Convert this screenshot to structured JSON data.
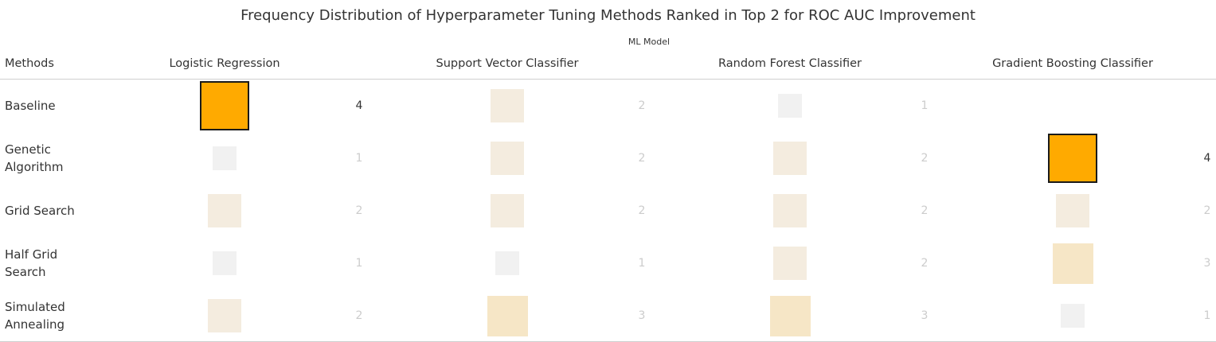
{
  "chart_data": {
    "type": "heatmap",
    "title": "Frequency Distribution of Hyperparameter Tuning Methods Ranked in Top 2 for ROC AUC Improvement",
    "column_group_label": "ML Model",
    "row_field_label": "Methods",
    "columns": [
      "Logistic Regression",
      "Support Vector Classifier",
      "Random Forest Classifier",
      "Gradient Boosting Classifier"
    ],
    "rows": [
      "Baseline",
      "Genetic\nAlgorithm",
      "Grid Search",
      "Half Grid\nSearch",
      "Simulated\nAnnealing"
    ],
    "values": [
      [
        4,
        2,
        1,
        null
      ],
      [
        1,
        2,
        2,
        4
      ],
      [
        2,
        2,
        2,
        2
      ],
      [
        1,
        1,
        2,
        3
      ],
      [
        2,
        3,
        3,
        1
      ]
    ],
    "max_value": 4,
    "colors": {
      "highlight": "#FFAA00",
      "highlight_border": "#1a1a1a",
      "value_1": "#F1F1F1",
      "value_2": "#F4ECDF",
      "value_3": "#F6E6C6",
      "text_dark": "#333333",
      "text_light": "#CCCCCC"
    }
  }
}
